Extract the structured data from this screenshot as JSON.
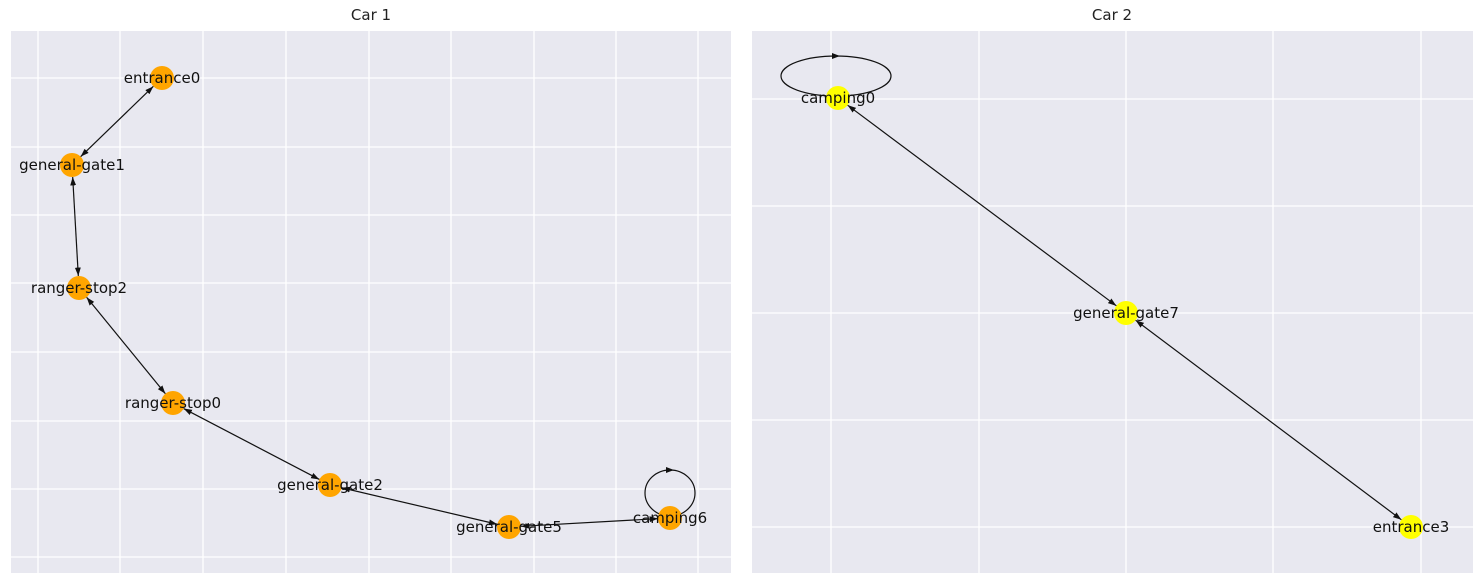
{
  "panels": [
    {
      "title": "Car 1",
      "node_color": "#FFA500",
      "nodes": [
        {
          "id": "entrance0"
        },
        {
          "id": "general-gate1"
        },
        {
          "id": "ranger-stop2"
        },
        {
          "id": "ranger-stop0"
        },
        {
          "id": "general-gate2"
        },
        {
          "id": "general-gate5"
        },
        {
          "id": "camping6"
        }
      ],
      "edges": [
        {
          "source": "entrance0",
          "target": "general-gate1",
          "bidirectional": true
        },
        {
          "source": "general-gate1",
          "target": "ranger-stop2",
          "bidirectional": true
        },
        {
          "source": "ranger-stop2",
          "target": "ranger-stop0",
          "bidirectional": true
        },
        {
          "source": "ranger-stop0",
          "target": "general-gate2",
          "bidirectional": true
        },
        {
          "source": "general-gate2",
          "target": "general-gate5",
          "bidirectional": true
        },
        {
          "source": "general-gate5",
          "target": "camping6",
          "bidirectional": true
        },
        {
          "source": "camping6",
          "target": "camping6",
          "self_loop": true
        }
      ]
    },
    {
      "title": "Car 2",
      "node_color": "#FFFF00",
      "nodes": [
        {
          "id": "camping0"
        },
        {
          "id": "general-gate7"
        },
        {
          "id": "entrance3"
        }
      ],
      "edges": [
        {
          "source": "camping0",
          "target": "camping0",
          "self_loop": true
        },
        {
          "source": "camping0",
          "target": "general-gate7",
          "bidirectional": true
        },
        {
          "source": "general-gate7",
          "target": "entrance3",
          "bidirectional": true
        }
      ]
    }
  ],
  "style": {
    "plot_background": "#E8E8F0",
    "grid_color": "#FFFFFF",
    "edge_color": "#111111"
  }
}
